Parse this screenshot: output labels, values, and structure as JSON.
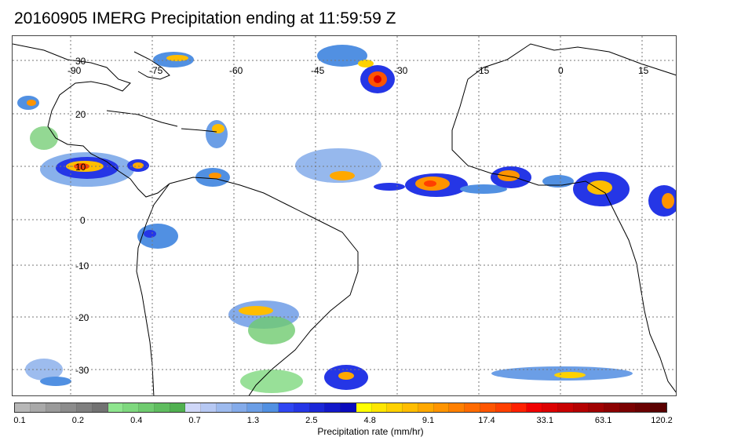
{
  "title": "20160905 IMERG Precipitation ending at 11:59:59 Z",
  "map": {
    "lon_labels": [
      "-90",
      "-75",
      "-60",
      "-45",
      "-30",
      "-15",
      "0",
      "15"
    ],
    "lat_labels": [
      "30",
      "20",
      "10",
      "0",
      "-10",
      "-20",
      "-30"
    ],
    "coastline_color": "#000000",
    "gridline_color": "#777777"
  },
  "colorbar": {
    "colors": [
      "#b7b7b7",
      "#a9a9a9",
      "#9a9a9a",
      "#8c8c8c",
      "#7f7f7f",
      "#727272",
      "#8ee58e",
      "#7ed87e",
      "#6fcb6f",
      "#5fbd5f",
      "#50b050",
      "#cfd7f8",
      "#b6c8f3",
      "#9dbaee",
      "#84abea",
      "#6b9ee6",
      "#5190e2",
      "#2f46f2",
      "#2536e6",
      "#1b27d8",
      "#1218ca",
      "#0a0bbc",
      "#ffff00",
      "#ffe600",
      "#ffd100",
      "#ffbd00",
      "#ffa800",
      "#ff9400",
      "#ff7f00",
      "#ff6a00",
      "#ff5500",
      "#ff3f00",
      "#ff2000",
      "#f00000",
      "#dc0000",
      "#c80000",
      "#b40000",
      "#a00000",
      "#8c0000",
      "#7a0000",
      "#6a0000",
      "#5a0000"
    ],
    "labels": [
      "0.1",
      "0.2",
      "0.4",
      "0.7",
      "1.3",
      "2.5",
      "4.8",
      "9.1",
      "17.4",
      "33.1",
      "63.1",
      "120.2"
    ],
    "title": "Precipitation rate (mm/hr)"
  }
}
